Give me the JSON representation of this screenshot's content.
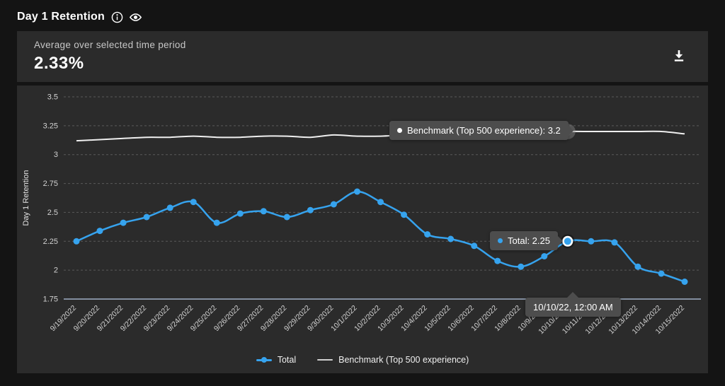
{
  "colors": {
    "accent_blue": "#36a3ee",
    "benchmark_line": "#efefef",
    "page_bg": "#141414",
    "panel_bg": "#2b2b2b",
    "tooltip_bg": "#4d4d4d",
    "axis_line": "#9fafc6",
    "gridline": "#5a5a5a"
  },
  "header": {
    "title": "Day 1 Retention",
    "icons": [
      "info-icon",
      "eye-icon"
    ]
  },
  "summary": {
    "label": "Average over selected time period",
    "value": "2.33%",
    "download_icon": "download-icon"
  },
  "chart_data": {
    "type": "line",
    "title": "Day 1 Retention",
    "xlabel": "",
    "ylabel": "Day 1 Retention",
    "ylim": [
      1.75,
      3.5
    ],
    "ytick_labels": [
      "1.75",
      "2",
      "2.25",
      "2.5",
      "2.75",
      "3",
      "3.25",
      "3.5"
    ],
    "grid": true,
    "legend_position": "bottom",
    "categories": [
      "9/19/2022",
      "9/20/2022",
      "9/21/2022",
      "9/22/2022",
      "9/23/2022",
      "9/24/2022",
      "9/25/2022",
      "9/26/2022",
      "9/27/2022",
      "9/28/2022",
      "9/29/2022",
      "9/30/2022",
      "10/1/2022",
      "10/2/2022",
      "10/3/2022",
      "10/4/2022",
      "10/5/2022",
      "10/6/2022",
      "10/7/2022",
      "10/8/2022",
      "10/9/2022",
      "10/10/2022",
      "10/11/2022",
      "10/12/2022",
      "10/13/2022",
      "10/14/2022",
      "10/15/2022"
    ],
    "series": [
      {
        "name": "Total",
        "color": "#36a3ee",
        "marker": "circle",
        "values": [
          2.25,
          2.34,
          2.41,
          2.46,
          2.54,
          2.59,
          2.41,
          2.49,
          2.51,
          2.46,
          2.52,
          2.57,
          2.68,
          2.59,
          2.48,
          2.31,
          2.27,
          2.21,
          2.08,
          2.03,
          2.12,
          2.25,
          2.25,
          2.24,
          2.03,
          1.97,
          1.9
        ]
      },
      {
        "name": "Benchmark (Top 500 experience)",
        "color": "#efefef",
        "marker": "none",
        "values": [
          3.12,
          3.13,
          3.14,
          3.15,
          3.15,
          3.16,
          3.15,
          3.15,
          3.16,
          3.16,
          3.15,
          3.17,
          3.16,
          3.16,
          3.17,
          3.17,
          3.17,
          3.18,
          3.18,
          3.19,
          3.19,
          3.2,
          3.2,
          3.2,
          3.2,
          3.2,
          3.18
        ]
      }
    ],
    "highlight": {
      "index": 21,
      "date_label": "10/10/22, 12:00 AM",
      "total_label": "Total: 2.25",
      "benchmark_label": "Benchmark (Top 500 experience): 3.2"
    }
  },
  "legend": {
    "items": [
      {
        "label": "Total"
      },
      {
        "label": "Benchmark (Top 500 experience)"
      }
    ]
  }
}
